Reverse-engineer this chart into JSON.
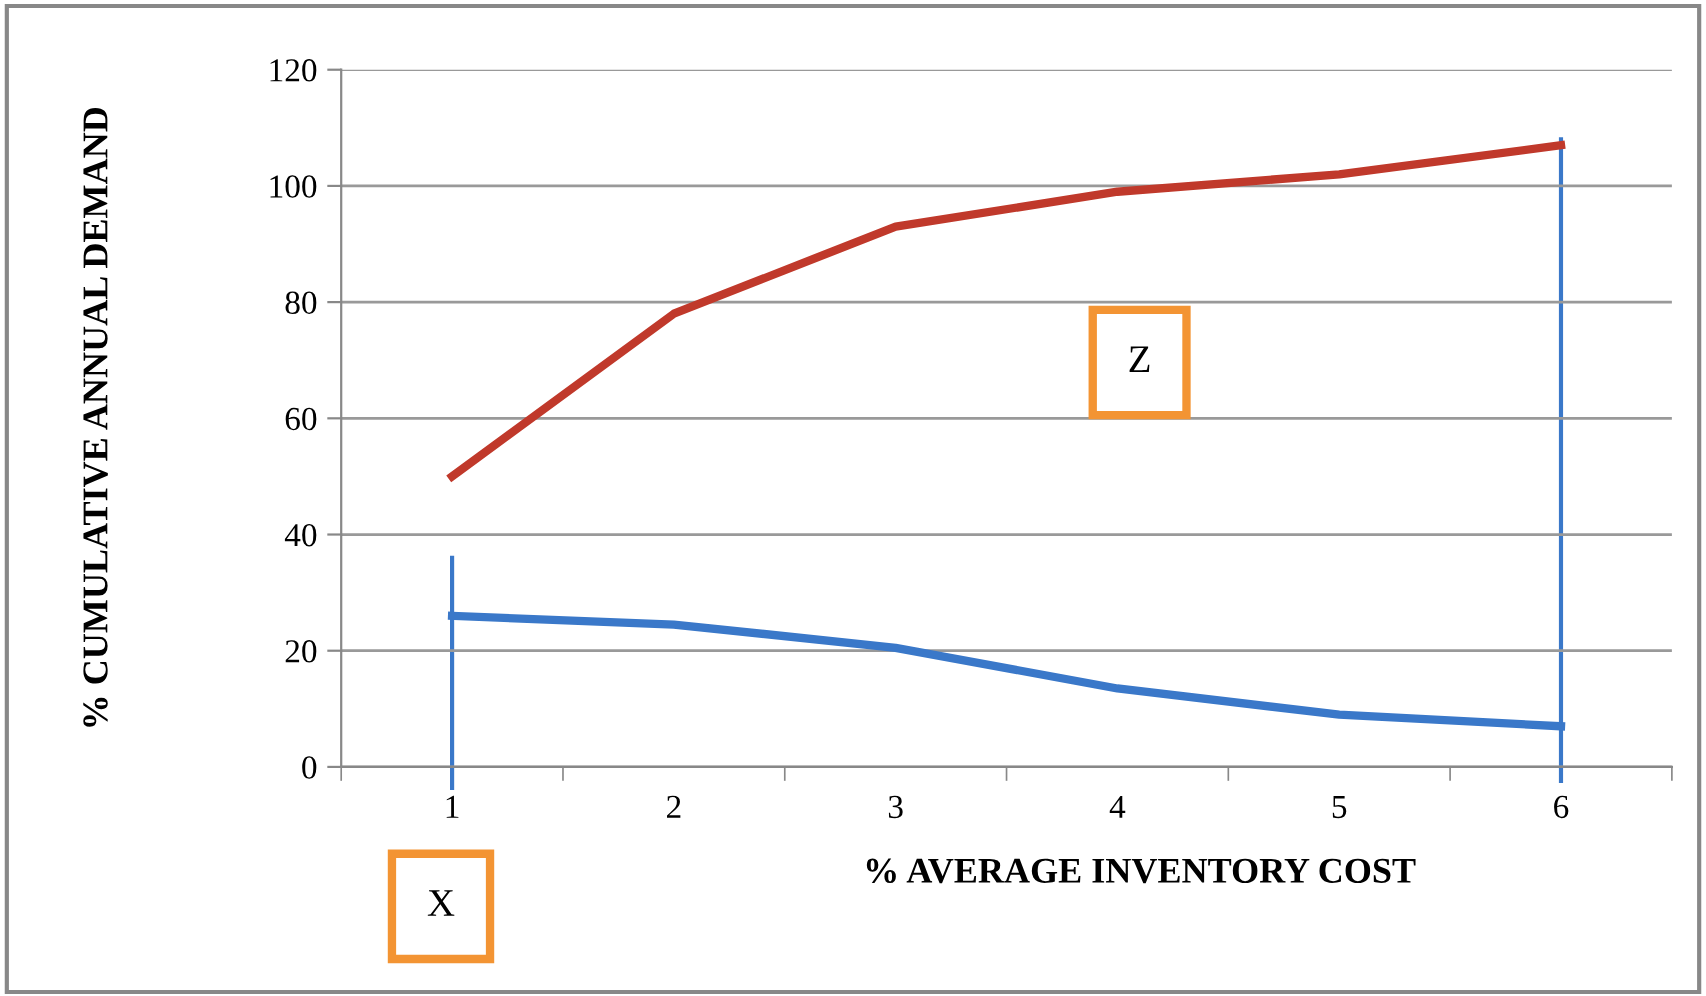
{
  "chart_data": {
    "type": "line",
    "xlabel": "% AVERAGE INVENTORY COST",
    "ylabel": "% CUMULATIVE ANNUAL DEMAND",
    "categories": [
      "1",
      "2",
      "3",
      "4",
      "5",
      "6"
    ],
    "series": [
      {
        "color": "#c0392b",
        "values": [
          50,
          78,
          93,
          99,
          102,
          107
        ]
      },
      {
        "color": "#3a78c9",
        "values": [
          26,
          24.5,
          20.5,
          13.5,
          9,
          7
        ]
      }
    ],
    "ylim": [
      0,
      120
    ],
    "yticks": [
      0,
      20,
      40,
      60,
      80,
      100,
      120
    ],
    "grid": "y",
    "legend": false,
    "marker": "none",
    "line_style": "solid",
    "ref_lines": [
      {
        "axis": "x",
        "value": "1",
        "color": "#3a78c9"
      },
      {
        "axis": "x",
        "value": "6",
        "color": "#3a78c9"
      }
    ],
    "annotations": [
      "X",
      "Z"
    ]
  }
}
